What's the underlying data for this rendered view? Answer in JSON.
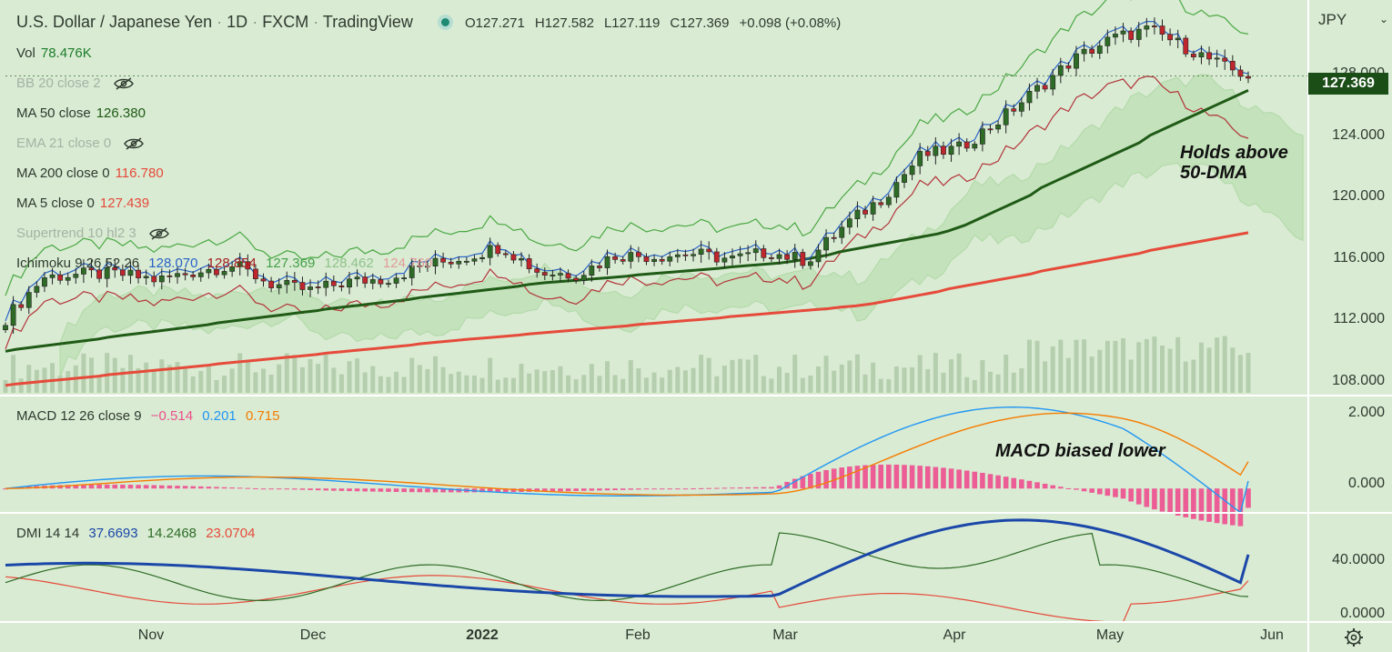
{
  "header": {
    "symbol": "U.S. Dollar / Japanese Yen",
    "interval": "1D",
    "exchange": "FXCM",
    "source": "TradingView",
    "o": "O127.271",
    "h": "H127.582",
    "l": "L127.119",
    "c": "C127.369",
    "change": "+0.098 (+0.08%)"
  },
  "legend": {
    "vol": {
      "label": "Vol",
      "value": "78.476K"
    },
    "bb": {
      "label": "BB 20 close 2"
    },
    "ma50": {
      "label": "MA 50 close",
      "value": "126.380"
    },
    "ema21": {
      "label": "EMA 21 close 0"
    },
    "ma200": {
      "label": "MA 200 close 0",
      "value": "116.780"
    },
    "ma5": {
      "label": "MA 5 close 0",
      "value": "127.439"
    },
    "supertrend": {
      "label": "Supertrend 10 hl2 3"
    },
    "ichimoku": {
      "label": "Ichimoku 9 26 52 26",
      "v1": "128.070",
      "v2": "128.854",
      "v3": "127.369",
      "v4": "128.462",
      "v5": "124.760"
    },
    "macd": {
      "label": "MACD 12 26 close 9",
      "v1": "−0.514",
      "v2": "0.201",
      "v3": "0.715"
    },
    "dmi": {
      "label": "DMI 14 14",
      "v1": "37.6693",
      "v2": "14.2468",
      "v3": "23.0704"
    }
  },
  "axis": {
    "currency": "JPY",
    "price_ticks": [
      "128.000",
      "124.000",
      "120.000",
      "116.000",
      "112.000",
      "108.000"
    ],
    "macd_ticks": [
      "2.000",
      "0.000"
    ],
    "dmi_ticks": [
      "40.0000",
      "0.0000"
    ],
    "time_ticks": [
      "Nov",
      "Dec",
      "2022",
      "Feb",
      "Mar",
      "Apr",
      "May",
      "Jun"
    ],
    "last_price": "127.369"
  },
  "annotations": {
    "a1": "Holds above",
    "a2": "50-DMA",
    "a3": "MACD biased lower"
  },
  "colors": {
    "background": "#d9ebd3",
    "up": "#2e6b26",
    "down": "#c0262d",
    "ma50": "#1f5a16",
    "ma200": "#e64a3a",
    "macd": "#2196f3",
    "signal": "#f57c00",
    "hist": "#ec5c95",
    "adx": "#1a47a8",
    "di_plus": "#2e6b26",
    "di_minus": "#e64a3a"
  },
  "chart_data": {
    "type": "candlestick",
    "x_range": [
      "2021-10-08",
      "2022-05-24"
    ],
    "ylim": [
      106,
      132
    ],
    "price": {
      "x": [
        "2021-10-08",
        "2021-10-15",
        "2021-10-22",
        "2021-10-29",
        "2021-11-05",
        "2021-11-12",
        "2021-11-19",
        "2021-11-26",
        "2021-12-03",
        "2021-12-10",
        "2021-12-17",
        "2021-12-24",
        "2021-12-31",
        "2022-01-07",
        "2022-01-14",
        "2022-01-21",
        "2022-01-28",
        "2022-02-04",
        "2022-02-11",
        "2022-02-18",
        "2022-02-25",
        "2022-03-04",
        "2022-03-11",
        "2022-03-18",
        "2022-03-25",
        "2022-04-01",
        "2022-04-08",
        "2022-04-15",
        "2022-04-22",
        "2022-04-29",
        "2022-05-06",
        "2022-05-13",
        "2022-05-20",
        "2022-05-24"
      ],
      "close": [
        111.0,
        113.8,
        114.0,
        114.0,
        113.6,
        114.2,
        114.6,
        113.3,
        112.9,
        113.5,
        113.7,
        114.6,
        115.1,
        115.9,
        114.1,
        114.0,
        115.3,
        115.2,
        115.4,
        115.0,
        115.5,
        114.9,
        117.3,
        119.2,
        122.0,
        122.5,
        124.3,
        126.4,
        128.5,
        129.9,
        130.5,
        129.2,
        127.9,
        127.369
      ]
    },
    "ma50": {
      "x": [
        "2021-10-08",
        "2021-12-01",
        "2022-01-15",
        "2022-03-01",
        "2022-04-01",
        "2022-05-24"
      ],
      "y": [
        108.8,
        111.4,
        113.4,
        114.8,
        117.0,
        126.4
      ]
    },
    "ma200": {
      "x": [
        "2021-10-08",
        "2022-01-01",
        "2022-03-15",
        "2022-05-24"
      ],
      "y": [
        106.5,
        109.6,
        111.9,
        116.8
      ]
    },
    "volume": {
      "max": "unlabeled"
    },
    "macd": {
      "ylim": [
        -0.6,
        2.4
      ],
      "macd_end": 0.201,
      "signal_end": 0.715,
      "hist_end": -0.514
    },
    "dmi": {
      "ylim": [
        0,
        60
      ],
      "adx_end": 37.6693,
      "di_plus_end": 14.2468,
      "di_minus_end": 23.0704
    }
  }
}
